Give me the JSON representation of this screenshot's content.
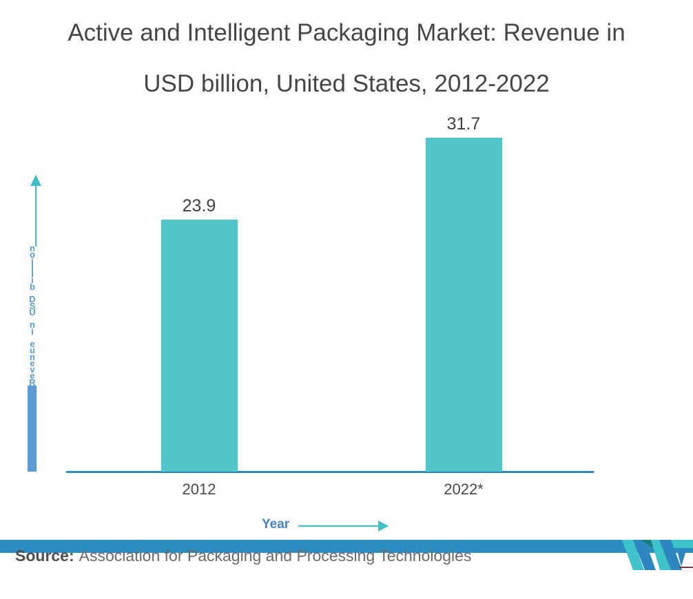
{
  "chart_data": {
    "type": "bar",
    "title": "Active and Intelligent Packaging Market: Revenue in USD billion, United States, 2012-2022",
    "title_lines": [
      "Active and Intelligent Packaging Market: Revenue in",
      "USD billion, United States, 2012-2022"
    ],
    "categories": [
      "2012",
      "2022*"
    ],
    "values": [
      23.9,
      31.7
    ],
    "value_labels": [
      "23.9",
      "31.7"
    ],
    "xlabel": "Year",
    "ylabel": "Revenue in USD billion",
    "grid": false,
    "legend_position": "none",
    "y_axis_tick_labels_visible": false,
    "bar_color": "#52C5C9"
  },
  "footer": {
    "source_label": "Source:",
    "source_text": "Association for Packaging and Processing Technologies"
  },
  "colors": {
    "title_text": "#46464A",
    "bar_fill": "#52C5C9",
    "axis_line_blue": "#2E86C0",
    "y_axis_label_blue": "#5B9AD5",
    "axis_arrow_teal": "#3EC0C7",
    "x_axis_title_blue": "#4584C6",
    "footer_stripe_blue": "#2C8DC3",
    "logo_teal": "#3FC3CB",
    "logo_blue": "#2E86C0",
    "logo_dark_teal": "#1A7F7C"
  },
  "icons": {
    "y_axis_arrow": "arrow-up-icon",
    "x_axis_arrow": "arrow-right-icon",
    "logo": "mordor-intelligence-logo"
  }
}
